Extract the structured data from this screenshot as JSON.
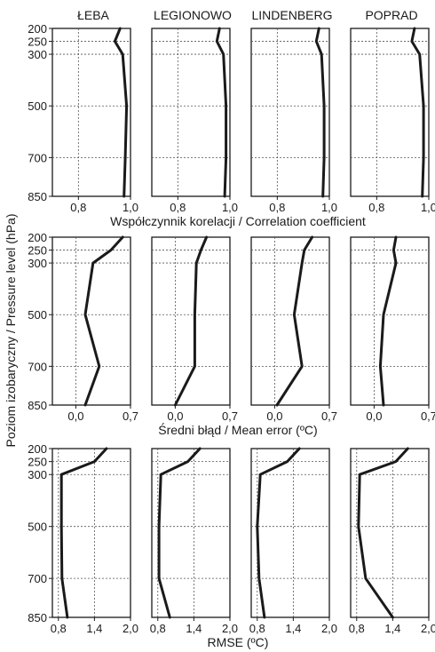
{
  "figure": {
    "y_axis_label": "Poziom izobaryczny / Pressure level (hPa)",
    "stations": [
      "ŁEBA",
      "LEGIONOWO",
      "LINDENBERG",
      "POPRAD"
    ],
    "pressure_levels": [
      200,
      250,
      300,
      500,
      700,
      850
    ]
  },
  "chart_data": [
    {
      "type": "line",
      "xlabel": "Współczynnik korelacji / Correlation coefficient",
      "ylabel": "Poziom izobaryczny / Pressure level (hPa)",
      "y": [
        200,
        250,
        300,
        500,
        700,
        850
      ],
      "ylim": [
        200,
        850
      ],
      "xlim": [
        0.7,
        1.0
      ],
      "xticks": [
        0.8,
        1.0
      ],
      "xtick_labels": [
        "0,8",
        "1,0"
      ],
      "grid": true,
      "series": [
        {
          "name": "ŁEBA",
          "x": [
            0.96,
            0.94,
            0.97,
            0.985,
            0.98,
            0.975
          ]
        },
        {
          "name": "LEGIONOWO",
          "x": [
            0.96,
            0.95,
            0.975,
            0.985,
            0.985,
            0.98
          ]
        },
        {
          "name": "LINDENBERG",
          "x": [
            0.96,
            0.95,
            0.97,
            0.98,
            0.98,
            0.975
          ]
        },
        {
          "name": "POPRAD",
          "x": [
            0.945,
            0.935,
            0.965,
            0.98,
            0.98,
            0.975
          ]
        }
      ]
    },
    {
      "type": "line",
      "xlabel": "Średni błąd / Mean error (ºC)",
      "ylabel": "Poziom izobaryczny / Pressure level (hPa)",
      "y": [
        200,
        250,
        300,
        500,
        700,
        850
      ],
      "ylim": [
        200,
        850
      ],
      "xlim": [
        -0.3,
        0.7
      ],
      "xticks": [
        0.0,
        0.7
      ],
      "xtick_labels": [
        "0,0",
        "0,7"
      ],
      "grid": true,
      "series": [
        {
          "name": "ŁEBA",
          "x": [
            0.6,
            0.45,
            0.22,
            0.12,
            0.3,
            0.12
          ]
        },
        {
          "name": "LEGIONOWO",
          "x": [
            0.4,
            0.33,
            0.27,
            0.25,
            0.25,
            0.0
          ]
        },
        {
          "name": "LINDENBERG",
          "x": [
            0.48,
            0.38,
            0.35,
            0.25,
            0.35,
            0.03
          ]
        },
        {
          "name": "POPRAD",
          "x": [
            0.28,
            0.25,
            0.28,
            0.12,
            0.08,
            0.12
          ]
        }
      ]
    },
    {
      "type": "line",
      "xlabel": "RMSE (ºC)",
      "ylabel": "Poziom izobaryczny / Pressure level (hPa)",
      "y": [
        200,
        250,
        300,
        500,
        700,
        850
      ],
      "ylim": [
        200,
        850
      ],
      "xlim": [
        0.7,
        2.0
      ],
      "xticks": [
        0.8,
        1.4,
        2.0
      ],
      "xtick_labels": [
        "0,8",
        "1,4",
        "2,0"
      ],
      "grid": true,
      "series": [
        {
          "name": "ŁEBA",
          "x": [
            1.6,
            1.4,
            0.85,
            0.85,
            0.86,
            0.95
          ]
        },
        {
          "name": "LEGIONOWO",
          "x": [
            1.5,
            1.3,
            0.85,
            0.82,
            0.82,
            1.0
          ]
        },
        {
          "name": "LINDENBERG",
          "x": [
            1.5,
            1.3,
            0.85,
            0.8,
            0.83,
            0.92
          ]
        },
        {
          "name": "POPRAD",
          "x": [
            1.65,
            1.45,
            0.85,
            0.83,
            0.95,
            1.4
          ]
        }
      ]
    }
  ]
}
